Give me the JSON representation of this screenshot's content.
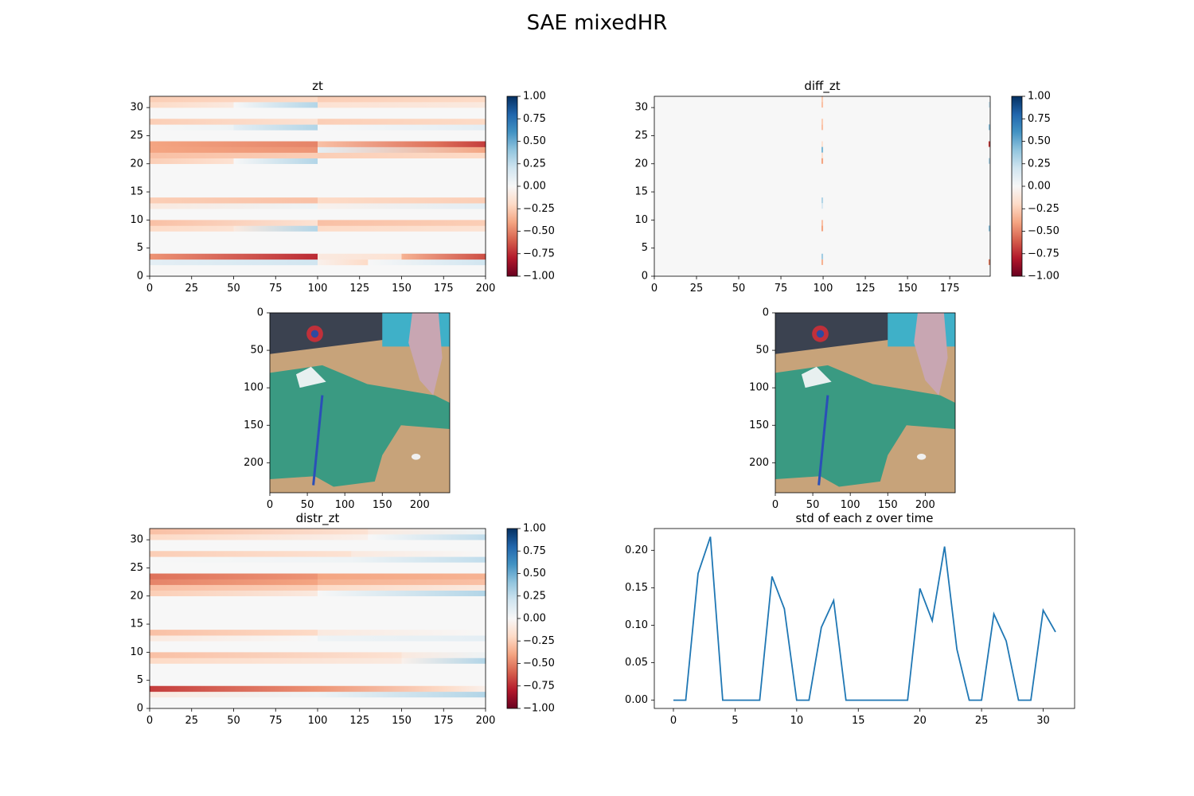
{
  "figure": {
    "title": "SAE mixedHR"
  },
  "colors": {
    "line": "#1f77b4",
    "axis": "#000000",
    "background": "#ffffff"
  },
  "images": [
    {
      "name": "observation-image-left",
      "description": "photo of a green hooded jacket laid on a cardboard surface, with a hand at top right",
      "x_ticks": [
        "0",
        "50",
        "100",
        "150",
        "200"
      ],
      "y_ticks": [
        "0",
        "50",
        "100",
        "150",
        "200"
      ]
    },
    {
      "name": "observation-image-right",
      "description": "photo of a green hooded jacket laid on a cardboard surface, with a hand at top right",
      "x_ticks": [
        "0",
        "50",
        "100",
        "150",
        "200"
      ],
      "y_ticks": [
        "0",
        "50",
        "100",
        "150",
        "200"
      ]
    }
  ],
  "chart_data": [
    {
      "type": "heatmap",
      "title": "zt",
      "colormap": "RdBu",
      "xlim": [
        0,
        200
      ],
      "ylim": [
        0,
        32
      ],
      "clim": [
        -1,
        1
      ],
      "x_ticks": [
        "0",
        "25",
        "50",
        "75",
        "100",
        "125",
        "150",
        "175",
        "200"
      ],
      "y_ticks": [
        "0",
        "5",
        "10",
        "15",
        "20",
        "25",
        "30"
      ],
      "colorbar_ticks": [
        "1.00",
        "0.75",
        "0.50",
        "0.25",
        "0.00",
        "−0.25",
        "−0.50",
        "−0.75",
        "−1.00"
      ],
      "rows": [
        {
          "z": 2,
          "seg": [
            [
              0,
              0.1,
              100,
              0.2
            ],
            [
              100,
              -0.05,
              130,
              -0.2
            ],
            [
              130,
              0.0,
              200,
              0.2
            ]
          ]
        },
        {
          "z": 3,
          "seg": [
            [
              0,
              -0.45,
              100,
              -0.75
            ],
            [
              100,
              -0.1,
              150,
              -0.15
            ],
            [
              150,
              -0.35,
              200,
              -0.65
            ]
          ]
        },
        {
          "z": 8,
          "seg": [
            [
              0,
              -0.2,
              50,
              -0.15
            ],
            [
              50,
              -0.1,
              100,
              0.3
            ],
            [
              100,
              -0.2,
              200,
              -0.15
            ]
          ]
        },
        {
          "z": 9,
          "seg": [
            [
              0,
              -0.3,
              100,
              -0.15
            ],
            [
              100,
              -0.3,
              200,
              -0.25
            ]
          ]
        },
        {
          "z": 12,
          "seg": [
            [
              0,
              -0.1,
              100,
              0.05
            ],
            [
              100,
              -0.05,
              200,
              0.1
            ]
          ]
        },
        {
          "z": 13,
          "seg": [
            [
              0,
              -0.25,
              100,
              -0.3
            ],
            [
              100,
              -0.2,
              200,
              -0.25
            ]
          ]
        },
        {
          "z": 20,
          "seg": [
            [
              0,
              -0.25,
              50,
              -0.15
            ],
            [
              50,
              0.0,
              100,
              0.3
            ],
            [
              100,
              0.0,
              200,
              0.0
            ]
          ]
        },
        {
          "z": 21,
          "seg": [
            [
              0,
              -0.3,
              100,
              -0.25
            ],
            [
              100,
              -0.25,
              200,
              -0.2
            ]
          ]
        },
        {
          "z": 22,
          "seg": [
            [
              0,
              -0.4,
              100,
              -0.45
            ],
            [
              100,
              0.1,
              200,
              -0.4
            ]
          ]
        },
        {
          "z": 23,
          "seg": [
            [
              0,
              -0.4,
              100,
              -0.5
            ],
            [
              100,
              -0.3,
              170,
              -0.55
            ],
            [
              170,
              -0.55,
              200,
              -0.7
            ]
          ]
        },
        {
          "z": 26,
          "seg": [
            [
              0,
              0.0,
              50,
              0.05
            ],
            [
              50,
              0.1,
              100,
              0.3
            ],
            [
              100,
              0.0,
              200,
              0.1
            ]
          ]
        },
        {
          "z": 27,
          "seg": [
            [
              0,
              -0.25,
              100,
              -0.15
            ],
            [
              100,
              -0.25,
              200,
              -0.2
            ]
          ]
        },
        {
          "z": 30,
          "seg": [
            [
              0,
              -0.2,
              50,
              -0.1
            ],
            [
              50,
              0.0,
              100,
              0.3
            ],
            [
              100,
              -0.15,
              200,
              -0.1
            ]
          ]
        },
        {
          "z": 31,
          "seg": [
            [
              0,
              -0.25,
              100,
              -0.2
            ],
            [
              100,
              -0.25,
              200,
              -0.2
            ]
          ]
        }
      ]
    },
    {
      "type": "heatmap",
      "title": "diff_zt",
      "colormap": "RdBu",
      "xlim": [
        0,
        199
      ],
      "ylim": [
        0,
        32
      ],
      "clim": [
        -1,
        1
      ],
      "x_ticks": [
        "0",
        "25",
        "50",
        "75",
        "100",
        "125",
        "150",
        "175"
      ],
      "y_ticks": [
        "0",
        "5",
        "10",
        "15",
        "20",
        "25",
        "30"
      ],
      "colorbar_ticks": [
        "1.00",
        "0.75",
        "0.50",
        "0.25",
        "0.00",
        "−0.25",
        "−0.50",
        "−0.75",
        "−1.00"
      ],
      "background_value": 0.0,
      "cells": [
        {
          "x": 99,
          "z": 2,
          "v": -0.35
        },
        {
          "x": 99,
          "z": 3,
          "v": 0.35
        },
        {
          "x": 99,
          "z": 8,
          "v": -0.4
        },
        {
          "x": 99,
          "z": 9,
          "v": -0.3
        },
        {
          "x": 99,
          "z": 12,
          "v": 0.15
        },
        {
          "x": 99,
          "z": 13,
          "v": 0.3
        },
        {
          "x": 99,
          "z": 20,
          "v": -0.4
        },
        {
          "x": 99,
          "z": 21,
          "v": -0.15
        },
        {
          "x": 99,
          "z": 22,
          "v": 0.45
        },
        {
          "x": 99,
          "z": 23,
          "v": -0.15
        },
        {
          "x": 99,
          "z": 26,
          "v": -0.3
        },
        {
          "x": 99,
          "z": 27,
          "v": -0.25
        },
        {
          "x": 99,
          "z": 30,
          "v": -0.3
        },
        {
          "x": 99,
          "z": 31,
          "v": -0.25
        },
        {
          "x": 198,
          "z": 2,
          "v": -0.5
        },
        {
          "x": 198,
          "z": 8,
          "v": 0.4
        },
        {
          "x": 198,
          "z": 20,
          "v": 0.3
        },
        {
          "x": 198,
          "z": 23,
          "v": -0.7
        },
        {
          "x": 198,
          "z": 26,
          "v": 0.4
        },
        {
          "x": 198,
          "z": 30,
          "v": 0.2
        }
      ]
    },
    {
      "type": "heatmap",
      "title": "distr_zt",
      "colormap": "RdBu",
      "xlim": [
        0,
        200
      ],
      "ylim": [
        0,
        32
      ],
      "clim": [
        -1,
        1
      ],
      "x_ticks": [
        "0",
        "25",
        "50",
        "75",
        "100",
        "125",
        "150",
        "175",
        "200"
      ],
      "y_ticks": [
        "0",
        "5",
        "10",
        "15",
        "20",
        "25",
        "30"
      ],
      "colorbar_ticks": [
        "1.00",
        "0.75",
        "0.50",
        "0.25",
        "0.00",
        "−0.25",
        "−0.50",
        "−0.75",
        "−1.00"
      ],
      "rows": [
        {
          "z": 2,
          "seg": [
            [
              0,
              -0.1,
              100,
              0.05
            ],
            [
              100,
              0.05,
              200,
              0.3
            ]
          ]
        },
        {
          "z": 3,
          "seg": [
            [
              0,
              -0.7,
              100,
              -0.45
            ],
            [
              100,
              -0.45,
              175,
              -0.2
            ],
            [
              175,
              -0.2,
              200,
              -0.05
            ]
          ]
        },
        {
          "z": 8,
          "seg": [
            [
              0,
              -0.2,
              150,
              -0.1
            ],
            [
              150,
              -0.05,
              200,
              0.3
            ]
          ]
        },
        {
          "z": 9,
          "seg": [
            [
              0,
              -0.3,
              150,
              -0.15
            ],
            [
              150,
              -0.1,
              200,
              0.05
            ]
          ]
        },
        {
          "z": 12,
          "seg": [
            [
              0,
              -0.1,
              100,
              0.0
            ],
            [
              100,
              0.05,
              200,
              0.1
            ]
          ]
        },
        {
          "z": 13,
          "seg": [
            [
              0,
              -0.3,
              100,
              -0.2
            ],
            [
              100,
              -0.1,
              200,
              0.0
            ]
          ]
        },
        {
          "z": 20,
          "seg": [
            [
              0,
              -0.25,
              100,
              -0.1
            ],
            [
              100,
              0.0,
              200,
              0.3
            ]
          ]
        },
        {
          "z": 21,
          "seg": [
            [
              0,
              -0.3,
              100,
              -0.25
            ],
            [
              100,
              -0.2,
              200,
              -0.1
            ]
          ]
        },
        {
          "z": 22,
          "seg": [
            [
              0,
              -0.5,
              100,
              -0.4
            ],
            [
              100,
              -0.35,
              200,
              -0.3
            ]
          ]
        },
        {
          "z": 23,
          "seg": [
            [
              0,
              -0.55,
              100,
              -0.45
            ],
            [
              100,
              -0.4,
              200,
              -0.35
            ]
          ]
        },
        {
          "z": 26,
          "seg": [
            [
              0,
              0.0,
              120,
              0.05
            ],
            [
              120,
              0.05,
              200,
              0.25
            ]
          ]
        },
        {
          "z": 27,
          "seg": [
            [
              0,
              -0.25,
              120,
              -0.15
            ],
            [
              120,
              -0.1,
              200,
              0.0
            ]
          ]
        },
        {
          "z": 30,
          "seg": [
            [
              0,
              -0.2,
              130,
              -0.05
            ],
            [
              130,
              0.0,
              200,
              0.25
            ]
          ]
        },
        {
          "z": 31,
          "seg": [
            [
              0,
              -0.3,
              130,
              -0.15
            ],
            [
              130,
              -0.1,
              200,
              0.05
            ]
          ]
        }
      ]
    },
    {
      "type": "line",
      "title": "std of each z over time",
      "xlim": [
        -1.55,
        32.55
      ],
      "ylim": [
        -0.011,
        0.229
      ],
      "x_ticks": [
        0,
        5,
        10,
        15,
        20,
        25,
        30
      ],
      "y_ticks": [
        "0.00",
        "0.05",
        "0.10",
        "0.15",
        "0.20"
      ],
      "y_tick_values": [
        0.0,
        0.05,
        0.1,
        0.15,
        0.2
      ],
      "series": [
        {
          "x": [
            0,
            1,
            2,
            3,
            4,
            5,
            6,
            7,
            8,
            9,
            10,
            11,
            12,
            13,
            14,
            15,
            16,
            17,
            18,
            19,
            20,
            21,
            22,
            23,
            24,
            25,
            26,
            27,
            28,
            29,
            30,
            31
          ],
          "values": [
            0.0,
            0.0,
            0.169,
            0.218,
            0.0,
            0.0,
            0.0,
            0.0,
            0.165,
            0.122,
            0.0,
            0.0,
            0.097,
            0.133,
            0.0,
            0.0,
            0.0,
            0.0,
            0.0,
            0.0,
            0.149,
            0.106,
            0.205,
            0.068,
            0.0,
            0.0,
            0.115,
            0.079,
            0.0,
            0.0,
            0.12,
            0.091
          ]
        }
      ]
    }
  ]
}
